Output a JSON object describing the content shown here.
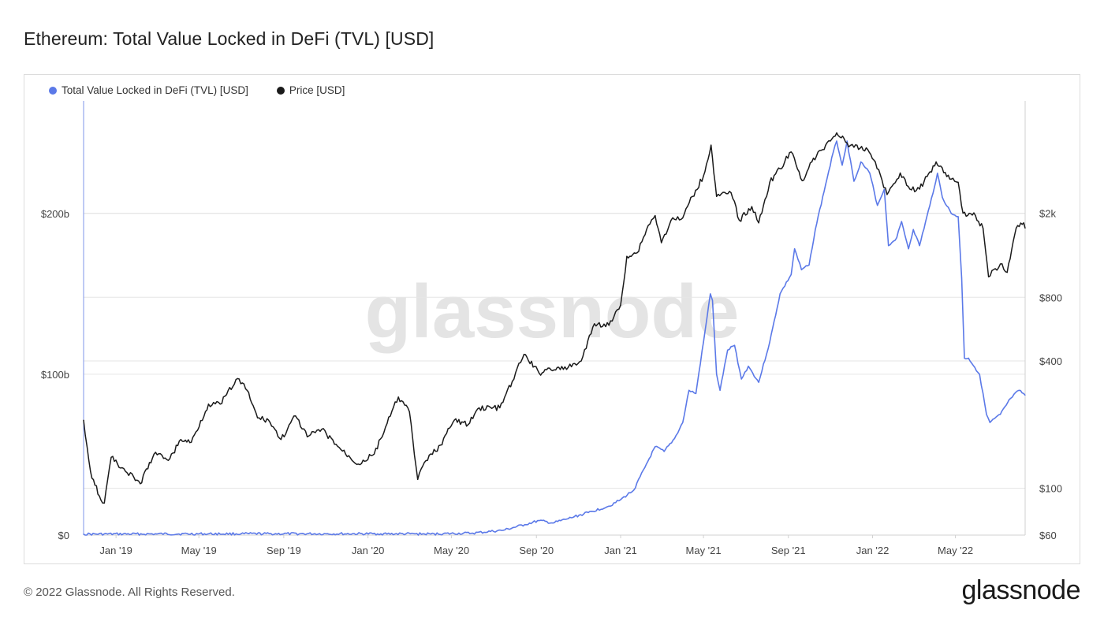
{
  "header": {
    "title": "Ethereum: Total Value Locked in DeFi (TVL) [USD]"
  },
  "footer": {
    "copyright": "© 2022 Glassnode. All Rights Reserved.",
    "brand": "glassnode"
  },
  "watermark": "glassnode",
  "colors": {
    "tvl": "#5b79e8",
    "price": "#1a1a1a",
    "grid": "#e6e6e6",
    "axis": "#d0d0d0"
  },
  "chart_data": {
    "type": "line",
    "title": "Ethereum: Total Value Locked in DeFi (TVL) [USD]",
    "legend_position": "top-left",
    "grid": true,
    "x": {
      "type": "date",
      "range": [
        "2018-11-15",
        "2022-08-10"
      ],
      "ticks": [
        {
          "date": "2019-01-01",
          "label": "Jan '19"
        },
        {
          "date": "2019-05-01",
          "label": "May '19"
        },
        {
          "date": "2019-09-01",
          "label": "Sep '19"
        },
        {
          "date": "2020-01-01",
          "label": "Jan '20"
        },
        {
          "date": "2020-05-01",
          "label": "May '20"
        },
        {
          "date": "2020-09-01",
          "label": "Sep '20"
        },
        {
          "date": "2021-01-01",
          "label": "Jan '21"
        },
        {
          "date": "2021-05-01",
          "label": "May '21"
        },
        {
          "date": "2021-09-01",
          "label": "Sep '21"
        },
        {
          "date": "2022-01-01",
          "label": "Jan '22"
        },
        {
          "date": "2022-05-01",
          "label": "May '22"
        }
      ]
    },
    "y_left": {
      "scale": "linear",
      "range": [
        0,
        270
      ],
      "ticks": [
        {
          "value": 0,
          "label": "$0"
        },
        {
          "value": 100,
          "label": "$100b"
        },
        {
          "value": 200,
          "label": "$200b"
        }
      ]
    },
    "y_right": {
      "scale": "log",
      "range": [
        60,
        6800
      ],
      "ticks": [
        {
          "value": 60,
          "label": "$60"
        },
        {
          "value": 100,
          "label": "$100"
        },
        {
          "value": 400,
          "label": "$400"
        },
        {
          "value": 800,
          "label": "$800"
        },
        {
          "value": 2000,
          "label": "$2k"
        }
      ]
    },
    "series": [
      {
        "name": "Total Value Locked in DeFi (TVL) [USD]",
        "axis": "left",
        "unit": "billion USD",
        "points": [
          [
            "2018-11-15",
            0.6
          ],
          [
            "2019-03-01",
            0.7
          ],
          [
            "2019-07-01",
            0.8
          ],
          [
            "2019-11-01",
            0.8
          ],
          [
            "2020-01-15",
            0.8
          ],
          [
            "2020-04-01",
            0.7
          ],
          [
            "2020-06-01",
            1.2
          ],
          [
            "2020-07-15",
            3.0
          ],
          [
            "2020-08-15",
            6.5
          ],
          [
            "2020-09-05",
            9.0
          ],
          [
            "2020-09-25",
            7.5
          ],
          [
            "2020-10-15",
            10.0
          ],
          [
            "2020-11-15",
            14.0
          ],
          [
            "2020-12-15",
            18.0
          ],
          [
            "2021-01-01",
            22.0
          ],
          [
            "2021-01-20",
            28.0
          ],
          [
            "2021-02-05",
            42.0
          ],
          [
            "2021-02-20",
            55.0
          ],
          [
            "2021-03-05",
            52.0
          ],
          [
            "2021-03-20",
            60.0
          ],
          [
            "2021-04-01",
            70.0
          ],
          [
            "2021-04-10",
            90.0
          ],
          [
            "2021-04-20",
            88.0
          ],
          [
            "2021-05-01",
            120.0
          ],
          [
            "2021-05-06",
            135.0
          ],
          [
            "2021-05-11",
            150.0
          ],
          [
            "2021-05-14",
            146.0
          ],
          [
            "2021-05-20",
            100.0
          ],
          [
            "2021-05-25",
            90.0
          ],
          [
            "2021-06-05",
            115.0
          ],
          [
            "2021-06-15",
            118.0
          ],
          [
            "2021-06-25",
            97.0
          ],
          [
            "2021-07-05",
            105.0
          ],
          [
            "2021-07-20",
            95.0
          ],
          [
            "2021-08-05",
            120.0
          ],
          [
            "2021-08-20",
            150.0
          ],
          [
            "2021-09-05",
            162.0
          ],
          [
            "2021-09-10",
            178.0
          ],
          [
            "2021-09-20",
            165.0
          ],
          [
            "2021-10-01",
            168.0
          ],
          [
            "2021-10-10",
            190.0
          ],
          [
            "2021-10-25",
            218.0
          ],
          [
            "2021-11-05",
            238.0
          ],
          [
            "2021-11-10",
            245.0
          ],
          [
            "2021-11-18",
            230.0
          ],
          [
            "2021-11-25",
            245.0
          ],
          [
            "2021-12-05",
            220.0
          ],
          [
            "2021-12-15",
            232.0
          ],
          [
            "2021-12-28",
            225.0
          ],
          [
            "2022-01-08",
            205.0
          ],
          [
            "2022-01-18",
            215.0
          ],
          [
            "2022-01-24",
            180.0
          ],
          [
            "2022-02-05",
            185.0
          ],
          [
            "2022-02-12",
            195.0
          ],
          [
            "2022-02-22",
            178.0
          ],
          [
            "2022-03-01",
            190.0
          ],
          [
            "2022-03-10",
            180.0
          ],
          [
            "2022-03-25",
            205.0
          ],
          [
            "2022-04-05",
            225.0
          ],
          [
            "2022-04-12",
            210.0
          ],
          [
            "2022-04-25",
            200.0
          ],
          [
            "2022-05-05",
            198.0
          ],
          [
            "2022-05-10",
            160.0
          ],
          [
            "2022-05-14",
            110.0
          ],
          [
            "2022-05-20",
            110.0
          ],
          [
            "2022-06-05",
            100.0
          ],
          [
            "2022-06-15",
            75.0
          ],
          [
            "2022-06-20",
            70.0
          ],
          [
            "2022-07-05",
            75.0
          ],
          [
            "2022-07-20",
            85.0
          ],
          [
            "2022-08-01",
            90.0
          ],
          [
            "2022-08-10",
            87.0
          ]
        ]
      },
      {
        "name": "Price [USD]",
        "axis": "right",
        "unit": "USD",
        "points": [
          [
            "2018-11-15",
            210
          ],
          [
            "2018-11-25",
            120
          ],
          [
            "2018-12-10",
            88
          ],
          [
            "2018-12-15",
            85
          ],
          [
            "2018-12-25",
            140
          ],
          [
            "2019-01-10",
            125
          ],
          [
            "2019-02-05",
            105
          ],
          [
            "2019-02-25",
            145
          ],
          [
            "2019-03-20",
            138
          ],
          [
            "2019-04-05",
            170
          ],
          [
            "2019-04-20",
            165
          ],
          [
            "2019-05-15",
            250
          ],
          [
            "2019-06-01",
            250
          ],
          [
            "2019-06-26",
            330
          ],
          [
            "2019-07-10",
            290
          ],
          [
            "2019-07-25",
            215
          ],
          [
            "2019-08-10",
            210
          ],
          [
            "2019-08-28",
            170
          ],
          [
            "2019-09-18",
            220
          ],
          [
            "2019-10-05",
            175
          ],
          [
            "2019-10-26",
            190
          ],
          [
            "2019-11-25",
            150
          ],
          [
            "2019-12-18",
            130
          ],
          [
            "2020-01-10",
            145
          ],
          [
            "2020-02-14",
            270
          ],
          [
            "2020-03-01",
            230
          ],
          [
            "2020-03-13",
            110
          ],
          [
            "2020-03-25",
            135
          ],
          [
            "2020-04-15",
            160
          ],
          [
            "2020-05-05",
            210
          ],
          [
            "2020-05-25",
            200
          ],
          [
            "2020-06-10",
            240
          ],
          [
            "2020-07-10",
            240
          ],
          [
            "2020-07-28",
            320
          ],
          [
            "2020-08-14",
            430
          ],
          [
            "2020-09-05",
            350
          ],
          [
            "2020-09-20",
            370
          ],
          [
            "2020-10-10",
            365
          ],
          [
            "2020-11-05",
            400
          ],
          [
            "2020-11-24",
            600
          ],
          [
            "2020-12-15",
            590
          ],
          [
            "2021-01-01",
            735
          ],
          [
            "2021-01-10",
            1250
          ],
          [
            "2021-01-25",
            1300
          ],
          [
            "2021-02-10",
            1750
          ],
          [
            "2021-02-20",
            1950
          ],
          [
            "2021-03-01",
            1450
          ],
          [
            "2021-03-15",
            1850
          ],
          [
            "2021-04-01",
            1900
          ],
          [
            "2021-04-15",
            2400
          ],
          [
            "2021-05-01",
            3000
          ],
          [
            "2021-05-12",
            4200
          ],
          [
            "2021-05-20",
            2400
          ],
          [
            "2021-06-10",
            2500
          ],
          [
            "2021-06-22",
            1850
          ],
          [
            "2021-07-10",
            2150
          ],
          [
            "2021-07-20",
            1800
          ],
          [
            "2021-08-05",
            2800
          ],
          [
            "2021-08-20",
            3250
          ],
          [
            "2021-09-05",
            3900
          ],
          [
            "2021-09-21",
            2850
          ],
          [
            "2021-10-05",
            3500
          ],
          [
            "2021-10-25",
            4200
          ],
          [
            "2021-11-10",
            4800
          ],
          [
            "2021-11-25",
            4300
          ],
          [
            "2021-12-05",
            4100
          ],
          [
            "2021-12-25",
            4000
          ],
          [
            "2022-01-05",
            3500
          ],
          [
            "2022-01-22",
            2450
          ],
          [
            "2022-02-10",
            3100
          ],
          [
            "2022-02-24",
            2600
          ],
          [
            "2022-03-10",
            2600
          ],
          [
            "2022-04-03",
            3500
          ],
          [
            "2022-04-25",
            2900
          ],
          [
            "2022-05-05",
            2800
          ],
          [
            "2022-05-12",
            2000
          ],
          [
            "2022-05-30",
            1950
          ],
          [
            "2022-06-10",
            1700
          ],
          [
            "2022-06-18",
            1000
          ],
          [
            "2022-07-05",
            1150
          ],
          [
            "2022-07-15",
            1050
          ],
          [
            "2022-07-28",
            1700
          ],
          [
            "2022-08-08",
            1800
          ],
          [
            "2022-08-10",
            1700
          ]
        ]
      }
    ]
  }
}
